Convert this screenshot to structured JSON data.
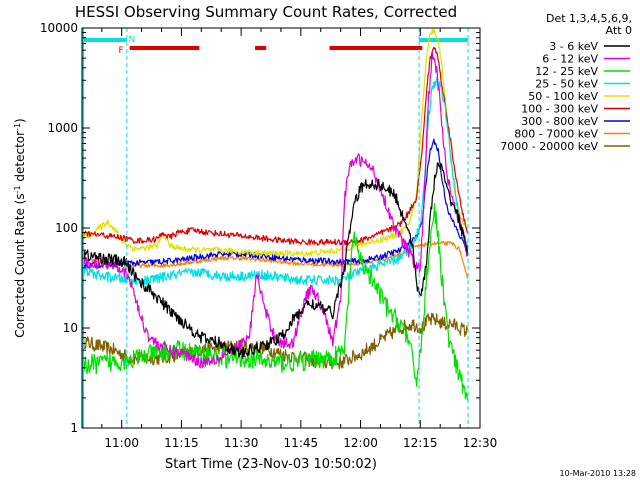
{
  "chart_data": {
    "type": "line",
    "title": "HESSI Observing Summary Count Rates, Corrected",
    "xlabel": "Start Time (23-Nov-03 10:50:02)",
    "ylabel": "Corrected Count Rate (s⁻¹ detector⁻¹)",
    "ylabel_base": "Corrected Count Rate (s",
    "ylabel_mid": " detector",
    "ylabel_end": ")",
    "ylabel_exp": "-1",
    "yscale": "log",
    "xlim": [
      50.03,
      150
    ],
    "ylim": [
      1,
      10000
    ],
    "x_ticks": [
      {
        "v": 60,
        "label": "11:00"
      },
      {
        "v": 75,
        "label": "11:15"
      },
      {
        "v": 90,
        "label": "11:30"
      },
      {
        "v": 105,
        "label": "11:45"
      },
      {
        "v": 120,
        "label": "12:00"
      },
      {
        "v": 135,
        "label": "12:15"
      },
      {
        "v": 150,
        "label": "12:30"
      }
    ],
    "y_ticks": [
      {
        "v": 1,
        "label": "1"
      },
      {
        "v": 10,
        "label": "10"
      },
      {
        "v": 100,
        "label": "100"
      },
      {
        "v": 1000,
        "label": "1000"
      },
      {
        "v": 10000,
        "label": "10000"
      }
    ],
    "legend_header": [
      "Det 1,3,4,5,6,9,",
      "Att 0"
    ],
    "legend_position": "right",
    "footer_date": "10-Mar-2010 13:28",
    "flags": {
      "night_label": "N",
      "flare_label": "F",
      "night_color": "#00e0e0",
      "flare_color": "#e00000",
      "night_intervals": [
        [
          50.03,
          61.3
        ],
        [
          134.7,
          147
        ]
      ],
      "flare_intervals": [
        [
          62,
          79.5
        ],
        [
          93.5,
          96.3
        ],
        [
          112.2,
          135.5
        ]
      ],
      "vlines": [
        61.3,
        134.7,
        147
      ],
      "night_label_x": 61.7,
      "flare_label_x": 59.2
    },
    "series": [
      {
        "name": "3 - 6 keV",
        "color": "#000000",
        "noise": 0.06,
        "x": [
          50.03,
          55,
          58,
          61,
          63,
          65,
          68,
          72,
          76,
          80,
          85,
          90,
          95,
          100,
          103,
          107,
          110,
          113,
          116,
          118,
          120,
          122,
          125,
          127,
          129,
          130,
          131,
          132,
          133,
          134,
          134.7,
          135.5,
          136.5,
          137.5,
          138.5,
          139.5,
          140.5,
          141.5,
          142.5,
          144,
          146,
          147
        ],
        "y": [
          55,
          50,
          48,
          45,
          35,
          28,
          22,
          15,
          11,
          8,
          7,
          5.5,
          6.5,
          8,
          12,
          18,
          16,
          14,
          40,
          150,
          250,
          280,
          270,
          240,
          200,
          150,
          120,
          100,
          70,
          30,
          20,
          25,
          45,
          120,
          300,
          420,
          400,
          250,
          200,
          150,
          80,
          50
        ]
      },
      {
        "name": "6 - 12 keV",
        "color": "#e000e0",
        "noise": 0.06,
        "x": [
          50.03,
          55,
          58,
          60,
          62,
          63.5,
          65,
          67,
          69,
          72,
          76,
          80,
          84,
          88,
          92,
          94,
          96,
          98,
          100,
          103,
          106,
          108,
          111,
          113,
          115,
          116,
          117,
          119,
          121,
          123,
          125,
          127,
          129,
          131,
          133,
          134,
          135,
          136,
          137,
          138,
          139,
          140,
          141,
          142,
          144,
          146,
          147
        ],
        "y": [
          45,
          45,
          44,
          40,
          30,
          20,
          12,
          8,
          7,
          6,
          5.5,
          4.5,
          5,
          6,
          8,
          35,
          15,
          9,
          7,
          7,
          20,
          25,
          14,
          7,
          20,
          200,
          380,
          500,
          450,
          380,
          250,
          150,
          90,
          70,
          50,
          40,
          40,
          200,
          1800,
          5000,
          4000,
          1800,
          600,
          300,
          150,
          80,
          50
        ]
      },
      {
        "name": "12 - 25 keV",
        "color": "#00e000",
        "noise": 0.1,
        "x": [
          50.03,
          56,
          62,
          68,
          74,
          80,
          86,
          92,
          98,
          104,
          110,
          113,
          116,
          118,
          121,
          124,
          127,
          129,
          131,
          133,
          134,
          135.5,
          136.5,
          137.5,
          138.5,
          139,
          140,
          141,
          142,
          143,
          144,
          146,
          147
        ],
        "y": [
          4.2,
          4.5,
          4.8,
          5.5,
          6,
          5.5,
          5,
          5,
          4.5,
          4.5,
          5,
          5,
          6,
          80,
          40,
          25,
          15,
          12,
          10,
          5,
          3,
          8,
          30,
          80,
          150,
          120,
          45,
          20,
          8,
          6,
          4,
          2.5,
          1.8
        ]
      },
      {
        "name": "25 - 50 keV",
        "color": "#00e0e0",
        "noise": 0.05,
        "x": [
          50.03,
          55,
          60,
          65,
          70,
          75,
          80,
          85,
          90,
          95,
          100,
          105,
          110,
          115,
          118,
          121,
          124,
          127,
          130,
          132,
          134,
          135.5,
          137,
          138,
          139,
          140,
          141,
          142,
          143,
          144,
          145,
          146,
          147
        ],
        "y": [
          38,
          33,
          31,
          29,
          32,
          35,
          36,
          33,
          33,
          34,
          32,
          30,
          30,
          30,
          34,
          38,
          42,
          45,
          50,
          60,
          80,
          150,
          1200,
          2500,
          3000,
          2600,
          1800,
          900,
          400,
          200,
          120,
          80,
          60
        ]
      },
      {
        "name": "50 - 100 keV",
        "color": "#e0e000",
        "noise": 0.03,
        "x": [
          50.03,
          53,
          55,
          56.5,
          58,
          60,
          63,
          66,
          69,
          70.5,
          72,
          75,
          80,
          85,
          90,
          95,
          100,
          105,
          110,
          115,
          118,
          121,
          124,
          127,
          130,
          132,
          134,
          135.5,
          136.5,
          137.5,
          138.5,
          139.5,
          140.5,
          141.5,
          142.5,
          143.5,
          144.5,
          145.5,
          146.5,
          147
        ],
        "y": [
          80,
          90,
          105,
          115,
          100,
          75,
          62,
          63,
          66,
          90,
          67,
          62,
          60,
          60,
          58,
          56,
          56,
          55,
          57,
          60,
          65,
          70,
          75,
          80,
          90,
          105,
          200,
          1500,
          5000,
          9000,
          9500,
          7500,
          4000,
          1500,
          600,
          250,
          150,
          120,
          100,
          90
        ]
      },
      {
        "name": "100 - 300 keV",
        "color": "#e00000",
        "noise": 0.03,
        "x": [
          50.03,
          55,
          60,
          63,
          66,
          69,
          70.5,
          72,
          74,
          78,
          82,
          88,
          94,
          100,
          106,
          112,
          116,
          120,
          124,
          127,
          130,
          132,
          134,
          135.5,
          136.5,
          137.5,
          138.5,
          139.5,
          140.5,
          141.5,
          142.5,
          143.5,
          144.5,
          145.5,
          146.5,
          147
        ],
        "y": [
          88,
          85,
          80,
          75,
          75,
          78,
          90,
          80,
          90,
          95,
          90,
          85,
          80,
          75,
          72,
          72,
          72,
          75,
          85,
          95,
          110,
          140,
          200,
          600,
          2200,
          5000,
          6500,
          5000,
          2500,
          1500,
          800,
          400,
          250,
          150,
          100,
          80
        ]
      },
      {
        "name": "300 - 800 keV",
        "color": "#0000e0",
        "noise": 0.03,
        "x": [
          50.03,
          55,
          60,
          65,
          70,
          75,
          80,
          85,
          90,
          95,
          100,
          105,
          110,
          115,
          120,
          124,
          127,
          130,
          132,
          134,
          135.5,
          136.5,
          137.5,
          138.5,
          139.5,
          140.5,
          141.5,
          142.5,
          143.5,
          144.5,
          145.5,
          146.5,
          147
        ],
        "y": [
          42,
          43,
          44,
          45,
          46,
          48,
          52,
          55,
          55,
          53,
          50,
          48,
          47,
          46,
          47,
          50,
          55,
          60,
          70,
          80,
          120,
          300,
          600,
          750,
          600,
          300,
          180,
          130,
          110,
          90,
          75,
          68,
          62
        ]
      },
      {
        "name": "800 - 7000 keV",
        "color": "#ff8000",
        "noise": 0.02,
        "x": [
          50.03,
          55,
          60,
          65,
          70,
          75,
          80,
          85,
          90,
          95,
          100,
          105,
          110,
          115,
          120,
          125,
          130,
          134,
          137,
          140,
          143,
          145,
          146,
          147
        ],
        "y": [
          48,
          46,
          42,
          42,
          42,
          44,
          47,
          50,
          50,
          48,
          46,
          44,
          43,
          43,
          44,
          48,
          55,
          65,
          70,
          70,
          70,
          60,
          40,
          30
        ]
      },
      {
        "name": "7000 - 20000 keV",
        "color": "#806000",
        "noise": 0.07,
        "x": [
          50.03,
          52,
          55,
          58,
          60,
          62,
          65,
          70,
          75,
          80,
          85,
          90,
          95,
          100,
          105,
          110,
          115,
          120,
          124,
          127,
          130,
          133,
          135.5,
          137,
          139,
          141,
          143,
          145,
          147
        ],
        "y": [
          7.5,
          7,
          6.5,
          6,
          5.5,
          5,
          5,
          5,
          5.5,
          6,
          6.5,
          6.5,
          6.5,
          5.5,
          5,
          4.5,
          4.5,
          5.5,
          7,
          8.5,
          10,
          11,
          10,
          12,
          12,
          11,
          11,
          10,
          9
        ]
      }
    ]
  }
}
